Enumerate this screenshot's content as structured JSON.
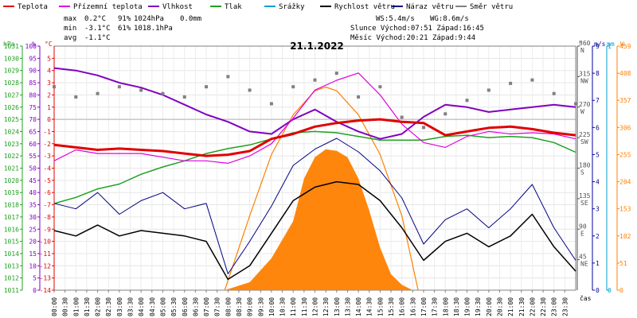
{
  "legend": [
    {
      "label": "Teplota",
      "color": "#e00000"
    },
    {
      "label": "Přízemní teplota",
      "color": "#e000e0"
    },
    {
      "label": "Vlhkost",
      "color": "#8000c0"
    },
    {
      "label": "Tlak",
      "color": "#20a020"
    },
    {
      "label": "Srážky",
      "color": "#00a0d0"
    },
    {
      "label": "Rychlost větru",
      "color": "#000000"
    },
    {
      "label": "Náraz větru",
      "color": "#000080"
    },
    {
      "label": "Směr větru",
      "color": "#808080"
    }
  ],
  "stats": {
    "max_label": "max",
    "max_temp": "0.2°C",
    "max_hum": "91%",
    "max_press": "1024hPa",
    "max_rain": "0.0mm",
    "min_label": "min",
    "min_temp": "-3.1°C",
    "min_hum": "61%",
    "min_press": "1018.1hPa",
    "avg_label": "avg",
    "avg_temp": "-1.1°C"
  },
  "wind_info": {
    "ws": "WS:5.4m/s",
    "wg": "WG:8.6m/s"
  },
  "sun_info": {
    "line": "Slunce Východ:07:51  Západ:16:45"
  },
  "moon_info": {
    "line": "Měsíc  Východ:20:21  Západ:9:44"
  },
  "title": "21.1.2022",
  "x_label": "čas",
  "unit_labels": {
    "hpa": "hPa",
    "pct": "%",
    "degc": "°C",
    "deg": "°",
    "ms": "m/s",
    "mm": "mm",
    "w": "W"
  },
  "chart_data": {
    "type": "line",
    "title": "21.1.2022",
    "x_ticks": [
      "00:00",
      "00:30",
      "01:00",
      "01:30",
      "02:00",
      "02:30",
      "03:00",
      "03:30",
      "04:00",
      "04:30",
      "05:00",
      "05:30",
      "06:00",
      "06:30",
      "07:00",
      "07:30",
      "08:00",
      "08:30",
      "09:00",
      "09:30",
      "10:00",
      "10:30",
      "11:00",
      "11:30",
      "12:00",
      "12:30",
      "13:00",
      "13:30",
      "14:00",
      "14:30",
      "15:00",
      "15:30",
      "16:00",
      "16:30",
      "17:00",
      "17:30",
      "18:00",
      "18:30",
      "19:00",
      "19:30",
      "20:00",
      "20:30",
      "21:00",
      "21:30",
      "22:00",
      "22:30",
      "23:00",
      "23:30"
    ],
    "axes": {
      "pressure": {
        "min": 1011,
        "max": 1031,
        "ticks": [
          1011,
          1012,
          1013,
          1014,
          1015,
          1016,
          1017,
          1018,
          1019,
          1020,
          1021,
          1022,
          1023,
          1024,
          1025,
          1026,
          1027,
          1028,
          1029,
          1030,
          1031
        ]
      },
      "humidity": {
        "min": 0,
        "max": 100,
        "ticks": [
          0,
          5,
          10,
          15,
          20,
          25,
          30,
          35,
          40,
          45,
          50,
          55,
          60,
          65,
          70,
          75,
          80,
          85,
          90,
          95,
          100
        ]
      },
      "temperature": {
        "min": -14,
        "max": 6,
        "ticks": [
          -14,
          -13,
          -12,
          -11,
          -10,
          -9,
          -8,
          -7,
          -6,
          -5,
          -4,
          -3,
          -2,
          -1,
          0,
          1,
          2,
          3,
          4,
          5
        ]
      },
      "wind_dir": {
        "min": 0,
        "max": 360,
        "ticks": [
          {
            "v": 360,
            "l": "N"
          },
          {
            "v": 315,
            "l": "NW"
          },
          {
            "v": 270,
            "l": "W"
          },
          {
            "v": 225,
            "l": "SW"
          },
          {
            "v": 180,
            "l": "S"
          },
          {
            "v": 135,
            "l": "SE"
          },
          {
            "v": 90,
            "l": "E"
          },
          {
            "v": 45,
            "l": "NE"
          }
        ]
      },
      "wind_speed": {
        "min": 0,
        "max": 9,
        "ticks": [
          0,
          1,
          2,
          3,
          4,
          5,
          6,
          7,
          8,
          9
        ]
      },
      "rain_mm": {
        "min": 0,
        "max": 1,
        "ticks": [
          0,
          1
        ]
      },
      "solar_w": {
        "min": 0,
        "max": 459,
        "ticks": [
          0,
          51,
          102,
          153,
          204,
          255,
          306,
          357,
          408,
          459
        ]
      }
    },
    "series": [
      {
        "name": "Teplota",
        "color": "#e00000",
        "points": [
          [
            0,
            -2.1
          ],
          [
            60,
            -2.3
          ],
          [
            120,
            -2.5
          ],
          [
            180,
            -2.4
          ],
          [
            240,
            -2.5
          ],
          [
            300,
            -2.6
          ],
          [
            360,
            -2.8
          ],
          [
            420,
            -3.0
          ],
          [
            480,
            -2.9
          ],
          [
            540,
            -2.6
          ],
          [
            600,
            -1.6
          ],
          [
            660,
            -1.2
          ],
          [
            720,
            -0.6
          ],
          [
            780,
            -0.3
          ],
          [
            840,
            -0.1
          ],
          [
            900,
            0.0
          ],
          [
            960,
            -0.2
          ],
          [
            1020,
            -0.3
          ],
          [
            1080,
            -1.3
          ],
          [
            1140,
            -1.0
          ],
          [
            1200,
            -0.7
          ],
          [
            1260,
            -0.6
          ],
          [
            1320,
            -0.8
          ],
          [
            1380,
            -1.1
          ],
          [
            1440,
            -1.3
          ]
        ]
      },
      {
        "name": "Přízemní teplota",
        "color": "#e000e0",
        "points": [
          [
            0,
            -3.4
          ],
          [
            60,
            -2.5
          ],
          [
            120,
            -2.8
          ],
          [
            180,
            -2.8
          ],
          [
            240,
            -2.8
          ],
          [
            300,
            -3.1
          ],
          [
            360,
            -3.4
          ],
          [
            420,
            -3.4
          ],
          [
            480,
            -3.6
          ],
          [
            540,
            -3.0
          ],
          [
            600,
            -2.0
          ],
          [
            660,
            0.1
          ],
          [
            720,
            2.4
          ],
          [
            780,
            3.2
          ],
          [
            840,
            3.8
          ],
          [
            900,
            2.0
          ],
          [
            960,
            -0.4
          ],
          [
            1020,
            -1.9
          ],
          [
            1080,
            -2.3
          ],
          [
            1140,
            -1.4
          ],
          [
            1200,
            -1.0
          ],
          [
            1260,
            -1.2
          ],
          [
            1320,
            -1.1
          ],
          [
            1380,
            -1.2
          ],
          [
            1440,
            -1.6
          ]
        ]
      },
      {
        "name": "Vlhkost",
        "color": "#8000c0",
        "points": [
          [
            0,
            91
          ],
          [
            60,
            90
          ],
          [
            120,
            88
          ],
          [
            180,
            85
          ],
          [
            240,
            83
          ],
          [
            300,
            80
          ],
          [
            360,
            76
          ],
          [
            420,
            72
          ],
          [
            480,
            69
          ],
          [
            540,
            65
          ],
          [
            600,
            64
          ],
          [
            660,
            70
          ],
          [
            720,
            74
          ],
          [
            780,
            69
          ],
          [
            840,
            65
          ],
          [
            900,
            62
          ],
          [
            960,
            64
          ],
          [
            1020,
            71
          ],
          [
            1080,
            76
          ],
          [
            1140,
            75
          ],
          [
            1200,
            73
          ],
          [
            1260,
            74
          ],
          [
            1320,
            75
          ],
          [
            1380,
            76
          ],
          [
            1440,
            75
          ]
        ]
      },
      {
        "name": "Tlak",
        "color": "#20a020",
        "points": [
          [
            0,
            1018.1
          ],
          [
            60,
            1018.6
          ],
          [
            120,
            1019.3
          ],
          [
            180,
            1019.7
          ],
          [
            240,
            1020.5
          ],
          [
            300,
            1021.1
          ],
          [
            360,
            1021.6
          ],
          [
            420,
            1022.2
          ],
          [
            480,
            1022.6
          ],
          [
            540,
            1022.9
          ],
          [
            600,
            1023.4
          ],
          [
            660,
            1023.9
          ],
          [
            720,
            1024.0
          ],
          [
            780,
            1023.9
          ],
          [
            840,
            1023.6
          ],
          [
            900,
            1023.3
          ],
          [
            960,
            1023.3
          ],
          [
            1020,
            1023.3
          ],
          [
            1080,
            1023.6
          ],
          [
            1140,
            1023.7
          ],
          [
            1200,
            1023.5
          ],
          [
            1260,
            1023.6
          ],
          [
            1320,
            1023.5
          ],
          [
            1380,
            1023.1
          ],
          [
            1440,
            1022.3
          ]
        ]
      },
      {
        "name": "Rychlost větru",
        "color": "#000000",
        "points": [
          [
            0,
            2.2
          ],
          [
            60,
            2.0
          ],
          [
            120,
            2.4
          ],
          [
            180,
            2.0
          ],
          [
            240,
            2.2
          ],
          [
            300,
            2.1
          ],
          [
            360,
            2.0
          ],
          [
            420,
            1.8
          ],
          [
            480,
            0.4
          ],
          [
            540,
            0.9
          ],
          [
            600,
            2.1
          ],
          [
            660,
            3.3
          ],
          [
            720,
            3.8
          ],
          [
            780,
            4.0
          ],
          [
            840,
            3.9
          ],
          [
            900,
            3.3
          ],
          [
            960,
            2.3
          ],
          [
            1020,
            1.1
          ],
          [
            1080,
            1.8
          ],
          [
            1140,
            2.1
          ],
          [
            1200,
            1.6
          ],
          [
            1260,
            2.0
          ],
          [
            1320,
            2.8
          ],
          [
            1380,
            1.6
          ],
          [
            1440,
            0.7
          ]
        ]
      },
      {
        "name": "Náraz větru",
        "color": "#000080",
        "points": [
          [
            0,
            3.2
          ],
          [
            60,
            3.0
          ],
          [
            120,
            3.6
          ],
          [
            180,
            2.8
          ],
          [
            240,
            3.3
          ],
          [
            300,
            3.6
          ],
          [
            360,
            3.0
          ],
          [
            420,
            3.2
          ],
          [
            480,
            0.6
          ],
          [
            540,
            1.8
          ],
          [
            600,
            3.1
          ],
          [
            660,
            4.6
          ],
          [
            720,
            5.2
          ],
          [
            780,
            5.6
          ],
          [
            840,
            5.1
          ],
          [
            900,
            4.4
          ],
          [
            960,
            3.4
          ],
          [
            1020,
            1.7
          ],
          [
            1080,
            2.6
          ],
          [
            1140,
            3.0
          ],
          [
            1200,
            2.3
          ],
          [
            1260,
            3.0
          ],
          [
            1320,
            3.9
          ],
          [
            1380,
            2.3
          ],
          [
            1440,
            1.1
          ]
        ]
      },
      {
        "name": "Směr větru",
        "color": "#808080",
        "points": [
          [
            0,
            300
          ],
          [
            60,
            285
          ],
          [
            120,
            290
          ],
          [
            180,
            300
          ],
          [
            240,
            295
          ],
          [
            300,
            290
          ],
          [
            360,
            285
          ],
          [
            420,
            300
          ],
          [
            480,
            315
          ],
          [
            540,
            295
          ],
          [
            600,
            275
          ],
          [
            660,
            300
          ],
          [
            720,
            310
          ],
          [
            780,
            320
          ],
          [
            840,
            285
          ],
          [
            900,
            300
          ],
          [
            960,
            255
          ],
          [
            1020,
            240
          ],
          [
            1080,
            260
          ],
          [
            1140,
            280
          ],
          [
            1200,
            295
          ],
          [
            1260,
            305
          ],
          [
            1320,
            310
          ],
          [
            1380,
            290
          ],
          [
            1440,
            275
          ]
        ]
      },
      {
        "name": "Sluneční svit",
        "color": "#ff8000",
        "points": [
          [
            471,
            0
          ],
          [
            540,
            15
          ],
          [
            600,
            60
          ],
          [
            660,
            130
          ],
          [
            690,
            210
          ],
          [
            720,
            250
          ],
          [
            750,
            265
          ],
          [
            780,
            262
          ],
          [
            810,
            250
          ],
          [
            840,
            210
          ],
          [
            870,
            150
          ],
          [
            900,
            80
          ],
          [
            930,
            30
          ],
          [
            960,
            10
          ],
          [
            990,
            0
          ]
        ]
      },
      {
        "name": "Teoretický svit",
        "color": "#ff8000",
        "points": [
          [
            471,
            0
          ],
          [
            540,
            140
          ],
          [
            600,
            255
          ],
          [
            660,
            330
          ],
          [
            720,
            375
          ],
          [
            750,
            382
          ],
          [
            780,
            375
          ],
          [
            840,
            330
          ],
          [
            900,
            255
          ],
          [
            960,
            140
          ],
          [
            1005,
            0
          ]
        ]
      }
    ]
  }
}
